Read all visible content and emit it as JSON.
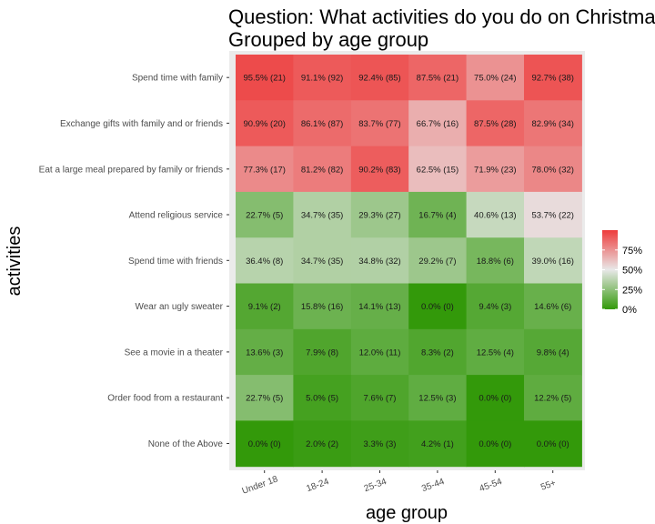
{
  "chart_data": {
    "type": "heatmap",
    "title_lines": [
      "Question: What activities do you do on Christmas?",
      "Grouped by age group"
    ],
    "xlabel": "age group",
    "ylabel": "activities",
    "x_categories": [
      "Under 18",
      "18-24",
      "25-34",
      "35-44",
      "45-54",
      "55+"
    ],
    "y_categories": [
      "Spend time with family",
      "Exchange gifts with family and or friends",
      "Eat a large meal prepared by family or friends",
      "Attend religious service",
      "Spend time with friends",
      "Wear an ugly sweater",
      "See a movie in a theater",
      "Order food from a restaurant",
      "None of the Above"
    ],
    "values": [
      [
        95.5,
        91.1,
        92.4,
        87.5,
        75.0,
        92.7
      ],
      [
        90.9,
        86.1,
        83.7,
        66.7,
        87.5,
        82.9
      ],
      [
        77.3,
        81.2,
        90.2,
        62.5,
        71.9,
        78.0
      ],
      [
        22.7,
        34.7,
        29.3,
        16.7,
        40.6,
        53.7
      ],
      [
        36.4,
        34.7,
        34.8,
        29.2,
        18.8,
        39.0
      ],
      [
        9.1,
        15.8,
        14.1,
        0.0,
        9.4,
        14.6
      ],
      [
        13.6,
        7.9,
        12.0,
        8.3,
        12.5,
        9.8
      ],
      [
        22.7,
        5.0,
        7.6,
        12.5,
        0.0,
        12.2
      ],
      [
        0.0,
        2.0,
        3.3,
        4.2,
        0.0,
        0.0
      ]
    ],
    "labels": [
      [
        "95.5% (21)",
        "91.1% (92)",
        "92.4% (85)",
        "87.5% (21)",
        "75.0% (24)",
        "92.7% (38)"
      ],
      [
        "90.9% (20)",
        "86.1% (87)",
        "83.7% (77)",
        "66.7% (16)",
        "87.5% (28)",
        "82.9% (34)"
      ],
      [
        "77.3% (17)",
        "81.2% (82)",
        "90.2% (83)",
        "62.5% (15)",
        "71.9% (23)",
        "78.0% (32)"
      ],
      [
        "22.7% (5)",
        "34.7% (35)",
        "29.3% (27)",
        "16.7% (4)",
        "40.6% (13)",
        "53.7% (22)"
      ],
      [
        "36.4% (8)",
        "34.7% (35)",
        "34.8% (32)",
        "29.2% (7)",
        "18.8% (6)",
        "39.0% (16)"
      ],
      [
        "9.1% (2)",
        "15.8% (16)",
        "14.1% (13)",
        "0.0% (0)",
        "9.4% (3)",
        "14.6% (6)"
      ],
      [
        "13.6% (3)",
        "7.9% (8)",
        "12.0% (11)",
        "8.3% (2)",
        "12.5% (4)",
        "9.8% (4)"
      ],
      [
        "22.7% (5)",
        "5.0% (5)",
        "7.6% (7)",
        "12.5% (3)",
        "0.0% (0)",
        "12.2% (5)"
      ],
      [
        "0.0% (0)",
        "2.0% (2)",
        "3.3% (3)",
        "4.2% (1)",
        "0.0% (0)",
        "0.0% (0)"
      ]
    ],
    "color_scale": {
      "low": "#33990a",
      "mid": "#e8e8e8",
      "high": "#ee3b3b",
      "domain": [
        0,
        100
      ],
      "midpoint": 50
    },
    "legend": {
      "position": "right",
      "ticks": [
        "0%",
        "25%",
        "50%",
        "75%"
      ],
      "tick_values": [
        0,
        25,
        50,
        75
      ]
    },
    "panel_background": "#ebebeb"
  }
}
